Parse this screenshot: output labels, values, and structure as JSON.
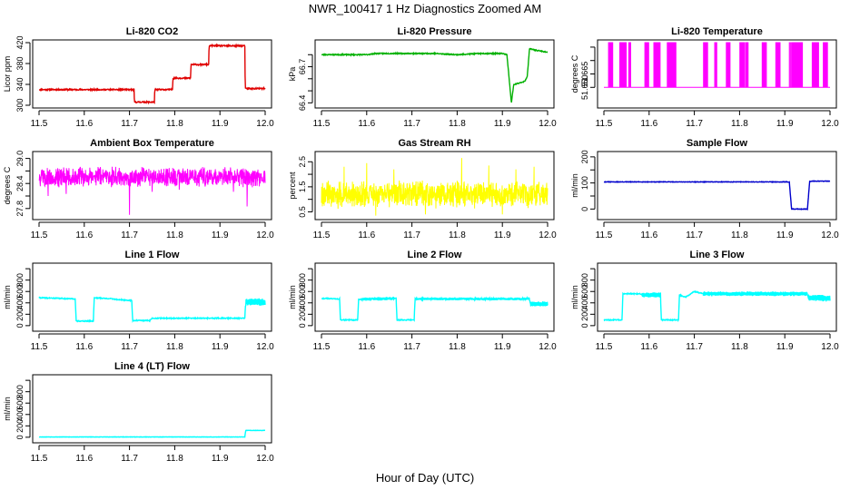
{
  "figure_title": "NWR_100417  1 Hz Diagnostics Zoomed AM",
  "x_axis_label": "Hour of Day (UTC)",
  "x_tick_labels": [
    "11.5",
    "11.6",
    "11.7",
    "11.8",
    "11.9",
    "12.0"
  ],
  "chart_data": [
    {
      "id": "co2",
      "type": "line",
      "title": "Li-820 CO2",
      "ylabel": "Licor ppm",
      "xlim": [
        11.5,
        12.0
      ],
      "ylim": [
        300,
        420
      ],
      "yticks": [
        300,
        340,
        380,
        420
      ],
      "ytick_labels": [
        "300",
        "340",
        "380",
        "420"
      ],
      "color": "#e00000",
      "noise": 1.2,
      "seed": 11,
      "x": [
        11.5,
        11.71,
        11.711,
        11.755,
        11.756,
        11.795,
        11.796,
        11.835,
        11.836,
        11.875,
        11.876,
        11.955,
        11.956,
        12.0
      ],
      "y": [
        330,
        330,
        306,
        306,
        330,
        330,
        352,
        352,
        378,
        378,
        414,
        414,
        332,
        332
      ]
    },
    {
      "id": "pressure",
      "type": "line",
      "title": "Li-820 Pressure",
      "ylabel": "kPa",
      "xlim": [
        11.5,
        12.0
      ],
      "ylim": [
        66.38,
        66.9
      ],
      "yticks": [
        66.4,
        66.5,
        66.6,
        66.7,
        66.8
      ],
      "ytick_labels": [
        "66.4",
        "",
        "",
        "66.7",
        ""
      ],
      "color": "#00b000",
      "noise": 0.004,
      "seed": 23,
      "x": [
        11.5,
        11.6,
        11.62,
        11.75,
        11.8,
        11.85,
        11.9,
        11.91,
        11.92,
        11.925,
        11.95,
        11.955,
        11.96,
        11.97,
        12.0
      ],
      "y": [
        66.8,
        66.8,
        66.81,
        66.81,
        66.8,
        66.81,
        66.81,
        66.8,
        66.4,
        66.55,
        66.58,
        66.62,
        66.85,
        66.84,
        66.82
      ]
    },
    {
      "id": "temperature",
      "type": "bursts",
      "title": "Li-820 Temperature",
      "ylabel": "degrees C",
      "xlim": [
        11.5,
        12.0
      ],
      "ylim": [
        51.63,
        51.7
      ],
      "yticks": [
        51.65,
        51.665,
        51.68,
        51.695
      ],
      "ytick_labels": [
        "51.650",
        "51.665",
        "",
        ""
      ],
      "color": "#ff00ff",
      "base": 51.65,
      "top": 51.7,
      "bursts": [
        [
          11.51,
          11.52,
          7
        ],
        [
          11.535,
          11.55,
          14
        ],
        [
          11.555,
          11.56,
          4
        ],
        [
          11.59,
          11.6,
          6
        ],
        [
          11.61,
          11.625,
          12
        ],
        [
          11.64,
          11.66,
          12
        ],
        [
          11.72,
          11.73,
          8
        ],
        [
          11.745,
          11.75,
          4
        ],
        [
          11.77,
          11.78,
          6
        ],
        [
          11.8,
          11.82,
          10
        ],
        [
          11.85,
          11.86,
          6
        ],
        [
          11.88,
          11.89,
          8
        ],
        [
          11.91,
          11.94,
          16
        ],
        [
          11.96,
          11.975,
          10
        ],
        [
          11.985,
          11.995,
          8
        ]
      ]
    },
    {
      "id": "box_temp",
      "type": "noise",
      "title": "Ambient Box Temperature",
      "ylabel": "degrees C",
      "xlim": [
        11.5,
        12.0
      ],
      "ylim": [
        27.6,
        29.1
      ],
      "yticks": [
        27.8,
        28.1,
        28.4,
        28.7,
        29.0
      ],
      "ytick_labels": [
        "27.8",
        "",
        "28.4",
        "",
        "29.0"
      ],
      "color": "#ff00ff",
      "center": 28.55,
      "amp": 0.2,
      "samples": 900,
      "seed": 5,
      "spikes": [
        [
          11.52,
          28.1
        ],
        [
          11.56,
          28.15
        ],
        [
          11.7,
          27.65
        ],
        [
          11.75,
          28.2
        ],
        [
          11.81,
          28.25
        ],
        [
          11.96,
          27.85
        ],
        [
          11.93,
          28.2
        ]
      ]
    },
    {
      "id": "rh",
      "type": "noise",
      "title": "Gas Stream RH",
      "ylabel": "percent",
      "xlim": [
        11.5,
        12.0
      ],
      "ylim": [
        0.3,
        2.8
      ],
      "yticks": [
        0.5,
        1.0,
        1.5,
        2.0,
        2.5
      ],
      "ytick_labels": [
        "0.5",
        "",
        "1.5",
        "",
        "2.5"
      ],
      "color": "#ffff00",
      "center": 1.2,
      "amp": 0.45,
      "samples": 1000,
      "seed": 9,
      "spikes": [
        [
          11.55,
          2.3
        ],
        [
          11.6,
          2.45
        ],
        [
          11.66,
          2.2
        ],
        [
          11.81,
          2.65
        ],
        [
          11.87,
          2.35
        ],
        [
          11.93,
          2.2
        ],
        [
          11.97,
          2.3
        ],
        [
          11.62,
          0.35
        ],
        [
          11.73,
          0.4
        ],
        [
          11.9,
          0.4
        ]
      ]
    },
    {
      "id": "sample_flow",
      "type": "line",
      "title": "Sample Flow",
      "ylabel": "ml/min",
      "xlim": [
        11.5,
        12.0
      ],
      "ylim": [
        -30,
        210
      ],
      "yticks": [
        0,
        50,
        100,
        150,
        200
      ],
      "ytick_labels": [
        "0",
        "",
        "100",
        "",
        "200"
      ],
      "color": "#0000cc",
      "noise": 1.0,
      "seed": 31,
      "x": [
        11.5,
        11.91,
        11.915,
        11.95,
        11.955,
        11.96,
        12.0
      ],
      "y": [
        104,
        104,
        0,
        0,
        105,
        107,
        107
      ]
    },
    {
      "id": "line1",
      "type": "line",
      "title": "Line 1 Flow",
      "ylabel": "ml/min",
      "xlim": [
        11.5,
        12.0
      ],
      "ylim": [
        -50,
        1050
      ],
      "yticks": [
        0,
        200,
        400,
        600,
        800,
        1000
      ],
      "ytick_labels": [
        "0",
        "200",
        "400",
        "600",
        "800",
        ""
      ],
      "color": "#00ffff",
      "noise": 8,
      "seed": 41,
      "x": [
        11.5,
        11.58,
        11.582,
        11.62,
        11.622,
        11.665,
        11.67,
        11.705,
        11.707,
        11.745,
        11.75,
        11.955,
        11.957,
        12.0
      ],
      "y": [
        490,
        470,
        80,
        80,
        490,
        470,
        460,
        440,
        90,
        90,
        130,
        130,
        420,
        410
      ],
      "wiggle": [
        [
          11.957,
          12.0,
          60
        ]
      ]
    },
    {
      "id": "line2",
      "type": "line",
      "title": "Line 2 Flow",
      "ylabel": "ml/min",
      "xlim": [
        11.5,
        12.0
      ],
      "ylim": [
        -50,
        1050
      ],
      "yticks": [
        0,
        200,
        400,
        600,
        800,
        1000
      ],
      "ytick_labels": [
        "0",
        "200",
        "400",
        "600",
        "800",
        ""
      ],
      "color": "#00ffff",
      "noise": 8,
      "seed": 43,
      "x": [
        11.5,
        11.54,
        11.542,
        11.58,
        11.582,
        11.665,
        11.667,
        11.705,
        11.707,
        11.96,
        11.962,
        12.0
      ],
      "y": [
        480,
        470,
        100,
        100,
        460,
        480,
        100,
        100,
        470,
        470,
        380,
        380
      ],
      "wiggle": [
        [
          11.59,
          11.66,
          25
        ],
        [
          11.71,
          11.96,
          20
        ],
        [
          11.962,
          12.0,
          40
        ]
      ]
    },
    {
      "id": "line3",
      "type": "line",
      "title": "Line 3 Flow",
      "ylabel": "ml/min",
      "xlim": [
        11.5,
        12.0
      ],
      "ylim": [
        -50,
        1050
      ],
      "yticks": [
        0,
        200,
        400,
        600,
        800,
        1000
      ],
      "ytick_labels": [
        "0",
        "200",
        "400",
        "600",
        "800",
        ""
      ],
      "color": "#00ffff",
      "noise": 8,
      "seed": 47,
      "x": [
        11.5,
        11.54,
        11.542,
        11.58,
        11.585,
        11.625,
        11.627,
        11.665,
        11.667,
        11.68,
        11.7,
        11.72,
        11.95,
        11.952,
        12.0
      ],
      "y": [
        100,
        100,
        560,
        560,
        540,
        540,
        100,
        100,
        540,
        500,
        600,
        560,
        560,
        490,
        480
      ],
      "wiggle": [
        [
          11.585,
          11.625,
          40
        ],
        [
          11.72,
          11.95,
          35
        ],
        [
          11.952,
          12.0,
          50
        ]
      ]
    },
    {
      "id": "line4",
      "type": "line",
      "title": "Line 4 (LT) Flow",
      "ylabel": "ml/min",
      "xlim": [
        11.5,
        12.0
      ],
      "ylim": [
        -50,
        1050
      ],
      "yticks": [
        0,
        200,
        400,
        600,
        800,
        1000
      ],
      "ytick_labels": [
        "0",
        "200",
        "400",
        "600",
        "800",
        ""
      ],
      "color": "#00ffff",
      "noise": 3,
      "seed": 53,
      "x": [
        11.5,
        11.955,
        11.957,
        12.0
      ],
      "y": [
        5,
        5,
        120,
        120
      ]
    }
  ]
}
